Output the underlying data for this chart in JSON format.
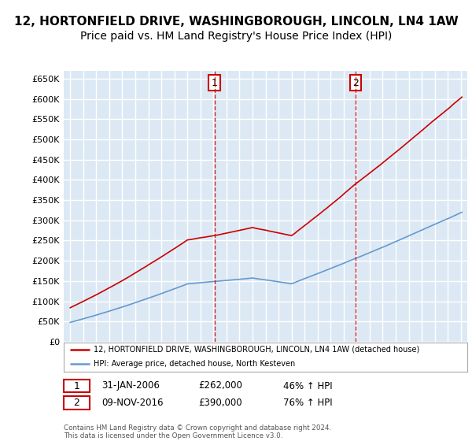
{
  "title": "12, HORTONFIELD DRIVE, WASHINGBOROUGH, LINCOLN, LN4 1AW",
  "subtitle": "Price paid vs. HM Land Registry's House Price Index (HPI)",
  "ylim": [
    0,
    670000
  ],
  "yticks": [
    0,
    50000,
    100000,
    150000,
    200000,
    250000,
    300000,
    350000,
    400000,
    450000,
    500000,
    550000,
    600000,
    650000
  ],
  "background_color": "#ffffff",
  "plot_bg_color": "#dce9f5",
  "grid_color": "#ffffff",
  "property_color": "#cc0000",
  "hpi_color": "#6699cc",
  "sale1_t": 2006.083,
  "sale1_price": 262000,
  "sale1_label": "1",
  "sale2_t": 2016.917,
  "sale2_price": 390000,
  "sale2_label": "2",
  "legend_property": "12, HORTONFIELD DRIVE, WASHINGBOROUGH, LINCOLN, LN4 1AW (detached house)",
  "legend_hpi": "HPI: Average price, detached house, North Kesteven",
  "ann1_date": "31-JAN-2006",
  "ann1_price": "£262,000",
  "ann1_hpi": "46% ↑ HPI",
  "ann2_date": "09-NOV-2016",
  "ann2_price": "£390,000",
  "ann2_hpi": "76% ↑ HPI",
  "footer": "Contains HM Land Registry data © Crown copyright and database right 2024.\nThis data is licensed under the Open Government Licence v3.0.",
  "title_fontsize": 11,
  "subtitle_fontsize": 10
}
